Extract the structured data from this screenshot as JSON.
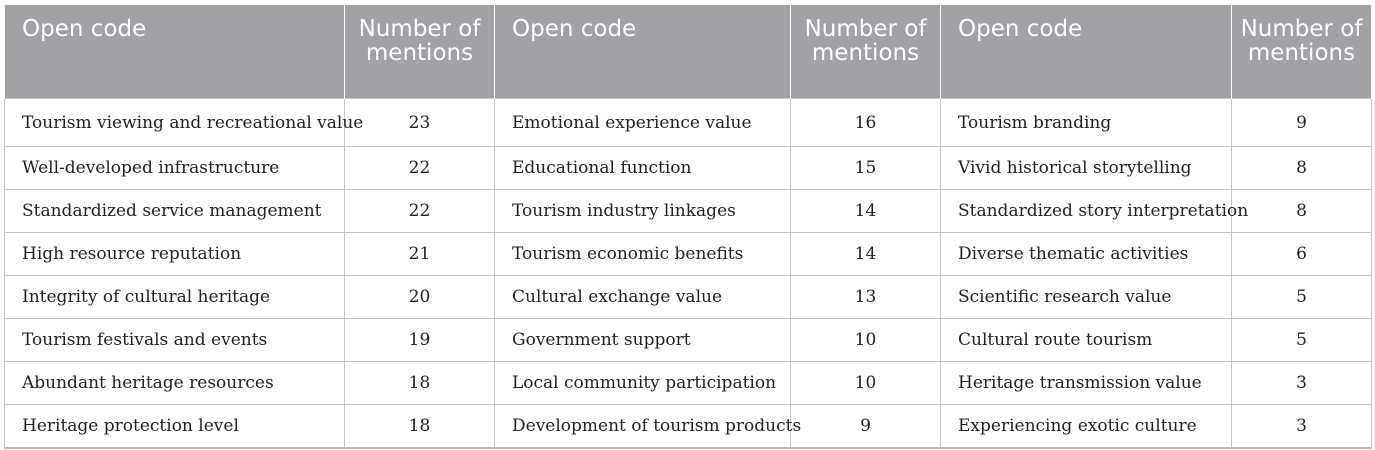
{
  "header": {
    "open_code": "Open code",
    "number_of_mentions": "Number of mentions"
  },
  "rows": [
    [
      "Tourism viewing and recreational value",
      "23",
      "Emotional experience value",
      "16",
      "Tourism branding",
      "9"
    ],
    [
      "Well-developed infrastructure",
      "22",
      "Educational function",
      "15",
      "Vivid historical storytelling",
      "8"
    ],
    [
      "Standardized service management",
      "22",
      "Tourism industry linkages",
      "14",
      "Standardized story interpretation",
      "8"
    ],
    [
      "High resource reputation",
      "21",
      "Tourism economic benefits",
      "14",
      "Diverse thematic activities",
      "6"
    ],
    [
      "Integrity of cultural heritage",
      "20",
      "Cultural exchange value",
      "13",
      "Scientific research value",
      "5"
    ],
    [
      "Tourism festivals and events",
      "19",
      "Government support",
      "10",
      "Cultural route tourism",
      "5"
    ],
    [
      "Abundant heritage resources",
      "18",
      "Local community participation",
      "10",
      "Heritage transmission value",
      "3"
    ],
    [
      "Heritage protection level",
      "18",
      "Development of tourism products",
      "9",
      "Experiencing exotic culture",
      "3"
    ]
  ]
}
